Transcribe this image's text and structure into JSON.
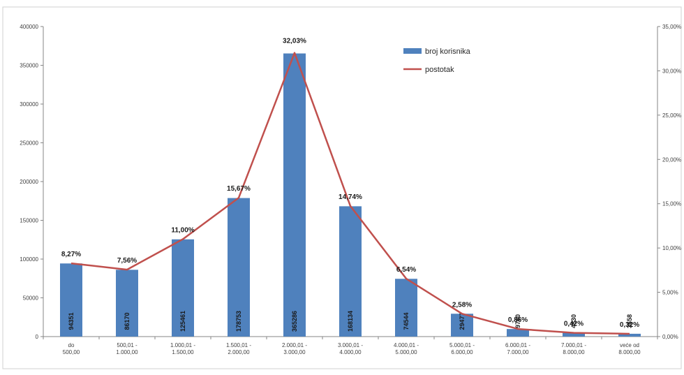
{
  "chart_data": {
    "type": "bar",
    "categories": [
      [
        "do",
        "500,00"
      ],
      [
        "500,01 -",
        "1.000,00"
      ],
      [
        "1.000,01 -",
        "1.500,00"
      ],
      [
        "1.500,01 -",
        "2.000,00"
      ],
      [
        "2.000,01 -",
        "3.000,00"
      ],
      [
        "3.000,01 -",
        "4.000,00"
      ],
      [
        "4.000,01 -",
        "5.000,00"
      ],
      [
        "5.000,01 -",
        "6.000,00"
      ],
      [
        "6.000,01 -",
        "7.000,00"
      ],
      [
        "7.000,01 -",
        "8.000,00"
      ],
      [
        "veće od",
        "8.000,00"
      ]
    ],
    "series": [
      {
        "name": "broj korisnika",
        "type": "bar",
        "axis": "left",
        "color": "#4f81bd",
        "values": [
          94351,
          86170,
          125461,
          178753,
          365286,
          168134,
          74544,
          29477,
          9760,
          4830,
          3658
        ],
        "labels": [
          "94351",
          "86170",
          "125461",
          "178753",
          "365286",
          "168134",
          "74544",
          "29477",
          "9760",
          "4830",
          "3658"
        ]
      },
      {
        "name": "postotak",
        "type": "line",
        "axis": "right",
        "color": "#c0504d",
        "values": [
          8.27,
          7.56,
          11.0,
          15.67,
          32.03,
          14.74,
          6.54,
          2.58,
          0.86,
          0.42,
          0.32
        ],
        "labels": [
          "8,27%",
          "7,56%",
          "11,00%",
          "15,67%",
          "32,03%",
          "14,74%",
          "6,54%",
          "2,58%",
          "0,86%",
          "0,42%",
          "0,32%"
        ]
      }
    ],
    "y_left": {
      "min": 0,
      "max": 400000,
      "ticks": [
        0,
        50000,
        100000,
        150000,
        200000,
        250000,
        300000,
        350000,
        400000
      ],
      "tick_labels": [
        "0",
        "50000",
        "100000",
        "150000",
        "200000",
        "250000",
        "300000",
        "350000",
        "400000"
      ]
    },
    "y_right": {
      "min": 0,
      "max": 35,
      "ticks": [
        0,
        5,
        10,
        15,
        20,
        25,
        30,
        35
      ],
      "tick_labels": [
        "0,00%",
        "5,00%",
        "10,00%",
        "15,00%",
        "20,00%",
        "25,00%",
        "30,00%",
        "35,00%"
      ]
    },
    "legend": {
      "position": "top-right",
      "entries": [
        "broj korisnika",
        "postotak"
      ]
    },
    "grid": false
  }
}
